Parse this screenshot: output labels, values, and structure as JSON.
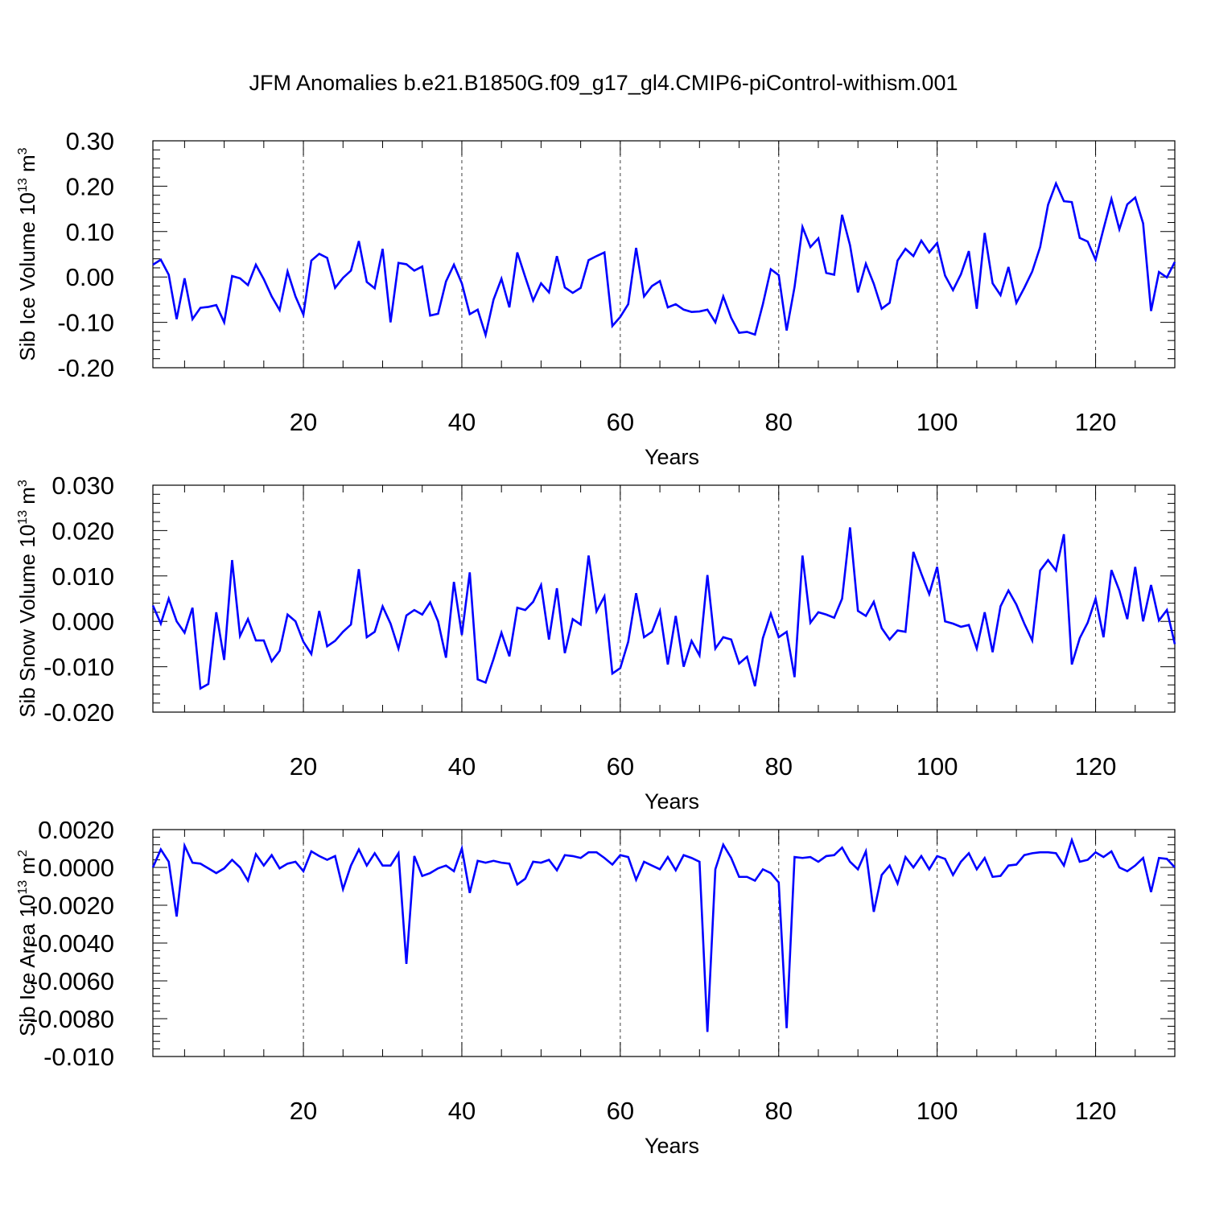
{
  "title": "JFM Anomalies b.e21.B1850G.f09_g17_gl4.CMIP6-piControl-withism.001",
  "chart_data": [
    {
      "type": "line",
      "ylabel": "Sib Ice Volume 10",
      "ylabel_exp": "13",
      "ylabel_unit": " m",
      "ylabel_unit_exp": "3",
      "xlabel": "Years",
      "xlim": [
        1,
        130
      ],
      "ylim": [
        -0.2,
        0.3
      ],
      "xticks": [
        20,
        40,
        60,
        80,
        100,
        120
      ],
      "xtick_labels": [
        "20",
        "40",
        "60",
        "80",
        "100",
        "120"
      ],
      "yticks": [
        -0.2,
        -0.1,
        0.0,
        0.1,
        0.2,
        0.3
      ],
      "ytick_labels": [
        "-0.20",
        "-0.10",
        "0.00",
        "0.10",
        "0.20",
        "0.30"
      ],
      "grid": "vertical dashed at major x ticks",
      "line_color": "#0000ff",
      "series": [
        {
          "values": [
            0.027,
            0.038,
            0.005,
            -0.093,
            -0.003,
            -0.093,
            -0.068,
            -0.066,
            -0.062,
            -0.1,
            0.002,
            -0.003,
            -0.018,
            0.027,
            -0.005,
            -0.043,
            -0.073,
            0.012,
            -0.043,
            -0.083,
            0.036,
            0.051,
            0.042,
            -0.024,
            -0.002,
            0.014,
            0.079,
            -0.011,
            -0.025,
            0.062,
            -0.1,
            0.031,
            0.028,
            0.014,
            0.023,
            -0.085,
            -0.081,
            -0.01,
            0.027,
            -0.014,
            -0.082,
            -0.072,
            -0.128,
            -0.05,
            -0.004,
            -0.067,
            0.054,
            0.0,
            -0.052,
            -0.014,
            -0.034,
            0.046,
            -0.023,
            -0.035,
            -0.024,
            0.037,
            0.046,
            0.054,
            -0.108,
            -0.088,
            -0.06,
            0.064,
            -0.043,
            -0.02,
            -0.009,
            -0.067,
            -0.06,
            -0.072,
            -0.077,
            -0.076,
            -0.072,
            -0.1,
            -0.043,
            -0.09,
            -0.123,
            -0.121,
            -0.127,
            -0.06,
            0.017,
            0.004,
            -0.118,
            -0.022,
            0.11,
            0.066,
            0.085,
            0.009,
            0.005,
            0.137,
            0.07,
            -0.034,
            0.029,
            -0.015,
            -0.07,
            -0.057,
            0.036,
            0.062,
            0.046,
            0.08,
            0.054,
            0.075,
            0.003,
            -0.029,
            0.006,
            0.057,
            -0.07,
            0.097,
            -0.014,
            -0.04,
            0.022,
            -0.057,
            -0.024,
            0.012,
            0.066,
            0.159,
            0.206,
            0.167,
            0.165,
            0.086,
            0.078,
            0.038,
            0.106,
            0.172,
            0.105,
            0.16,
            0.175,
            0.118,
            -0.075,
            0.011,
            -0.001,
            0.033
          ]
        }
      ]
    },
    {
      "type": "line",
      "ylabel": "Sib Snow Volume 10",
      "ylabel_exp": "13",
      "ylabel_unit": " m",
      "ylabel_unit_exp": "3",
      "xlabel": "Years",
      "xlim": [
        1,
        130
      ],
      "ylim": [
        -0.02,
        0.03
      ],
      "xticks": [
        20,
        40,
        60,
        80,
        100,
        120
      ],
      "xtick_labels": [
        "20",
        "40",
        "60",
        "80",
        "100",
        "120"
      ],
      "yticks": [
        -0.02,
        -0.01,
        0.0,
        0.01,
        0.02,
        0.03
      ],
      "ytick_labels": [
        "-0.020",
        "-0.010",
        "0.000",
        "0.010",
        "0.020",
        "0.030"
      ],
      "grid": "vertical dashed at major x ticks",
      "line_color": "#0000ff",
      "series": [
        {
          "values": [
            0.0035,
            -0.0005,
            0.005,
            0.0,
            -0.0025,
            0.003,
            -0.0148,
            -0.0138,
            0.002,
            -0.0085,
            0.0135,
            -0.0032,
            0.0005,
            -0.0042,
            -0.0042,
            -0.0088,
            -0.0065,
            0.0015,
            0.0,
            -0.0045,
            -0.0072,
            0.0023,
            -0.0055,
            -0.0043,
            -0.0023,
            -0.0007,
            0.0115,
            -0.0035,
            -0.0023,
            0.0033,
            -0.0005,
            -0.006,
            0.0013,
            0.0025,
            0.0015,
            0.0042,
            0.0,
            -0.008,
            0.0087,
            -0.003,
            0.0108,
            -0.0128,
            -0.0135,
            -0.0083,
            -0.0025,
            -0.0077,
            0.003,
            0.0025,
            0.0043,
            0.008,
            -0.004,
            0.0073,
            -0.007,
            0.0005,
            -0.0007,
            0.0145,
            0.0022,
            0.0055,
            -0.0115,
            -0.0103,
            -0.0045,
            0.0062,
            -0.0035,
            -0.0023,
            0.0023,
            -0.0095,
            0.0012,
            -0.01,
            -0.0043,
            -0.0075,
            0.0102,
            -0.006,
            -0.0035,
            -0.004,
            -0.0093,
            -0.0078,
            -0.0143,
            -0.0037,
            0.0017,
            -0.0035,
            -0.0023,
            -0.0123,
            0.0145,
            -0.0003,
            0.002,
            0.0015,
            0.0008,
            0.005,
            0.0207,
            0.0023,
            0.0012,
            0.0043,
            -0.0015,
            -0.004,
            -0.002,
            -0.0023,
            0.0153,
            0.0105,
            0.006,
            0.012,
            0.0,
            -0.0005,
            -0.0012,
            -0.0008,
            -0.006,
            0.002,
            -0.0068,
            0.0033,
            0.0068,
            0.0037,
            -0.0005,
            -0.0042,
            0.0112,
            0.0135,
            0.0112,
            0.0192,
            -0.0095,
            -0.0037,
            -0.0003,
            0.005,
            -0.0035,
            0.0113,
            0.0068,
            0.0005,
            0.012,
            0.0,
            0.008,
            0.0002,
            0.0025,
            -0.005
          ]
        }
      ]
    },
    {
      "type": "line",
      "ylabel": "Sib Ice Area 10",
      "ylabel_exp": "13",
      "ylabel_unit": " m",
      "ylabel_unit_exp": "2",
      "xlabel": "Years",
      "xlim": [
        1,
        130
      ],
      "ylim": [
        -0.01,
        0.002
      ],
      "xticks": [
        20,
        40,
        60,
        80,
        100,
        120
      ],
      "xtick_labels": [
        "20",
        "40",
        "60",
        "80",
        "100",
        "120"
      ],
      "yticks": [
        -0.01,
        -0.008,
        -0.006,
        -0.004,
        -0.002,
        0.0,
        0.002
      ],
      "ytick_labels": [
        "-0.010",
        "-0.0080",
        "-0.0060",
        "-0.0040",
        "-0.0020",
        "0.0000",
        "0.0020"
      ],
      "grid": "vertical dashed at major x ticks",
      "line_color": "#0000ff",
      "series": [
        {
          "values": [
            0.0,
            0.00095,
            0.0003,
            -0.0026,
            0.00115,
            0.00025,
            0.0002,
            -5e-05,
            -0.0003,
            -5e-05,
            0.0004,
            0.0,
            -0.0007,
            0.0007,
            0.0001,
            0.00065,
            -5e-05,
            0.0002,
            0.0003,
            -0.0002,
            0.00085,
            0.0006,
            0.0004,
            0.0006,
            -0.00115,
            0.0001,
            0.00095,
            0.0001,
            0.00075,
            0.0001,
            0.0001,
            0.00075,
            -0.0051,
            0.0006,
            -0.00045,
            -0.0003,
            -5e-05,
            0.0001,
            -0.0002,
            0.001,
            -0.00135,
            0.00035,
            0.00025,
            0.00035,
            0.00025,
            0.0002,
            -0.0009,
            -0.0006,
            0.0003,
            0.00025,
            0.0004,
            -0.00015,
            0.00065,
            0.0006,
            0.0005,
            0.0008,
            0.0008,
            0.0005,
            0.00015,
            0.00065,
            0.00055,
            -0.00065,
            0.0003,
            0.0001,
            -0.0001,
            0.00055,
            -0.00015,
            0.00065,
            0.0005,
            0.0003,
            -0.0087,
            -0.0001,
            0.0012,
            0.0005,
            -0.0005,
            -0.0005,
            -0.0007,
            -0.0001,
            -0.0003,
            -0.0008,
            -0.0085,
            0.00055,
            0.0005,
            0.00055,
            0.0003,
            0.0006,
            0.00065,
            0.00105,
            0.0003,
            -0.0001,
            0.00085,
            -0.00235,
            -0.0004,
            0.0001,
            -0.00085,
            0.00055,
            0.0,
            0.0006,
            -0.0001,
            0.0006,
            0.00045,
            -0.0004,
            0.0003,
            0.00075,
            -0.0001,
            0.0005,
            -0.0005,
            -0.00045,
            0.0001,
            0.00015,
            0.00065,
            0.00075,
            0.0008,
            0.0008,
            0.00075,
            0.0001,
            0.00145,
            0.0003,
            0.0004,
            0.0008,
            0.00055,
            0.00085,
            0.0,
            -0.0002,
            0.0001,
            0.0005,
            -0.0013,
            0.0005,
            0.00045,
            0.0
          ]
        }
      ]
    }
  ]
}
